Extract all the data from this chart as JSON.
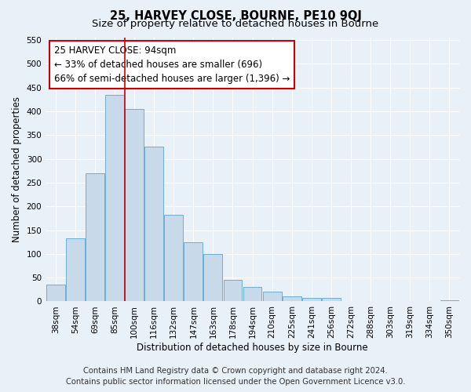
{
  "title": "25, HARVEY CLOSE, BOURNE, PE10 9QJ",
  "subtitle": "Size of property relative to detached houses in Bourne",
  "xlabel": "Distribution of detached houses by size in Bourne",
  "ylabel": "Number of detached properties",
  "bar_labels": [
    "38sqm",
    "54sqm",
    "69sqm",
    "85sqm",
    "100sqm",
    "116sqm",
    "132sqm",
    "147sqm",
    "163sqm",
    "178sqm",
    "194sqm",
    "210sqm",
    "225sqm",
    "241sqm",
    "256sqm",
    "272sqm",
    "288sqm",
    "303sqm",
    "319sqm",
    "334sqm",
    "350sqm"
  ],
  "bar_values": [
    35,
    133,
    270,
    435,
    405,
    325,
    183,
    125,
    100,
    46,
    30,
    20,
    10,
    7,
    7,
    1,
    1,
    1,
    0,
    0,
    2
  ],
  "bar_color": "#c8d9ea",
  "bar_edge_color": "#6baed6",
  "annotation_text_line1": "25 HARVEY CLOSE: 94sqm",
  "annotation_text_line2": "← 33% of detached houses are smaller (696)",
  "annotation_text_line3": "66% of semi-detached houses are larger (1,396) →",
  "annotation_box_facecolor": "#ffffff",
  "annotation_box_edgecolor": "#cc0000",
  "vline_color": "#cc0000",
  "vline_x_index": 3,
  "ylim": [
    0,
    555
  ],
  "yticks": [
    0,
    50,
    100,
    150,
    200,
    250,
    300,
    350,
    400,
    450,
    500,
    550
  ],
  "footer_line1": "Contains HM Land Registry data © Crown copyright and database right 2024.",
  "footer_line2": "Contains public sector information licensed under the Open Government Licence v3.0.",
  "background_color": "#e8f0f8",
  "title_fontsize": 10.5,
  "subtitle_fontsize": 9.5,
  "axis_label_fontsize": 8.5,
  "tick_fontsize": 7.5,
  "footer_fontsize": 7.2,
  "annotation_fontsize": 8.5
}
